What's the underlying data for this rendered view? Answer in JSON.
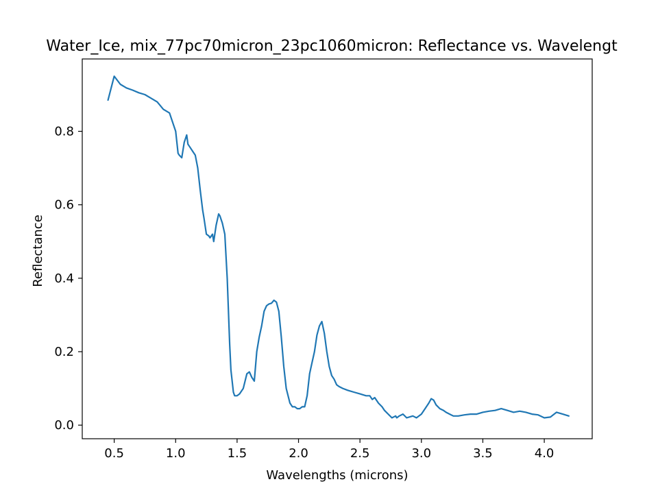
{
  "chart_data": {
    "type": "line",
    "title": "Water_Ice, mix_77pc70micron_23pc1060micron: Reflectance vs. Wavelengt",
    "xlabel": "Wavelengths (microns)",
    "ylabel": "Reflectance",
    "xlim": [
      0.24,
      4.39
    ],
    "ylim": [
      -0.037,
      0.997
    ],
    "xticks": [
      0.5,
      1.0,
      1.5,
      2.0,
      2.5,
      3.0,
      3.5,
      4.0
    ],
    "xtick_labels": [
      "0.5",
      "1.0",
      "1.5",
      "2.0",
      "2.5",
      "3.0",
      "3.5",
      "4.0"
    ],
    "yticks": [
      0.0,
      0.2,
      0.4,
      0.6,
      0.8
    ],
    "ytick_labels": [
      "0.0",
      "0.2",
      "0.4",
      "0.6",
      "0.8"
    ],
    "grid": false,
    "series": [
      {
        "color": "#1f77b4",
        "x": [
          0.45,
          0.5,
          0.55,
          0.6,
          0.65,
          0.7,
          0.75,
          0.8,
          0.85,
          0.9,
          0.95,
          0.97,
          1.0,
          1.02,
          1.03,
          1.05,
          1.07,
          1.09,
          1.1,
          1.12,
          1.14,
          1.16,
          1.18,
          1.2,
          1.22,
          1.23,
          1.25,
          1.27,
          1.28,
          1.3,
          1.31,
          1.33,
          1.35,
          1.36,
          1.38,
          1.4,
          1.42,
          1.44,
          1.45,
          1.47,
          1.48,
          1.5,
          1.52,
          1.55,
          1.58,
          1.6,
          1.62,
          1.64,
          1.66,
          1.68,
          1.7,
          1.72,
          1.74,
          1.76,
          1.78,
          1.8,
          1.82,
          1.84,
          1.86,
          1.88,
          1.9,
          1.93,
          1.95,
          1.97,
          1.99,
          2.01,
          2.03,
          2.05,
          2.07,
          2.09,
          2.11,
          2.13,
          2.15,
          2.17,
          2.19,
          2.21,
          2.23,
          2.25,
          2.27,
          2.29,
          2.31,
          2.33,
          2.36,
          2.4,
          2.45,
          2.5,
          2.55,
          2.58,
          2.6,
          2.62,
          2.65,
          2.68,
          2.7,
          2.73,
          2.76,
          2.79,
          2.8,
          2.82,
          2.85,
          2.88,
          2.9,
          2.93,
          2.96,
          3.0,
          3.03,
          3.06,
          3.08,
          3.1,
          3.12,
          3.15,
          3.18,
          3.2,
          3.23,
          3.26,
          3.3,
          3.35,
          3.4,
          3.45,
          3.5,
          3.55,
          3.6,
          3.65,
          3.7,
          3.75,
          3.8,
          3.85,
          3.9,
          3.95,
          4.0,
          4.05,
          4.1,
          4.15,
          4.2
        ],
        "y": [
          0.885,
          0.95,
          0.928,
          0.918,
          0.912,
          0.905,
          0.9,
          0.89,
          0.88,
          0.86,
          0.85,
          0.83,
          0.8,
          0.74,
          0.735,
          0.728,
          0.77,
          0.79,
          0.765,
          0.755,
          0.745,
          0.735,
          0.7,
          0.64,
          0.585,
          0.565,
          0.52,
          0.515,
          0.51,
          0.52,
          0.5,
          0.545,
          0.575,
          0.57,
          0.55,
          0.52,
          0.4,
          0.22,
          0.15,
          0.09,
          0.08,
          0.08,
          0.085,
          0.1,
          0.14,
          0.145,
          0.13,
          0.12,
          0.2,
          0.24,
          0.27,
          0.31,
          0.325,
          0.33,
          0.332,
          0.34,
          0.335,
          0.31,
          0.24,
          0.16,
          0.1,
          0.06,
          0.05,
          0.05,
          0.045,
          0.045,
          0.05,
          0.05,
          0.08,
          0.14,
          0.17,
          0.2,
          0.245,
          0.27,
          0.282,
          0.25,
          0.2,
          0.16,
          0.135,
          0.125,
          0.11,
          0.105,
          0.1,
          0.095,
          0.09,
          0.085,
          0.08,
          0.08,
          0.07,
          0.075,
          0.06,
          0.05,
          0.04,
          0.03,
          0.02,
          0.025,
          0.02,
          0.025,
          0.03,
          0.02,
          0.022,
          0.025,
          0.02,
          0.03,
          0.045,
          0.06,
          0.072,
          0.068,
          0.055,
          0.045,
          0.04,
          0.035,
          0.03,
          0.025,
          0.025,
          0.028,
          0.03,
          0.03,
          0.035,
          0.038,
          0.04,
          0.045,
          0.04,
          0.035,
          0.038,
          0.035,
          0.03,
          0.028,
          0.02,
          0.022,
          0.035,
          0.03,
          0.025
        ]
      }
    ]
  }
}
